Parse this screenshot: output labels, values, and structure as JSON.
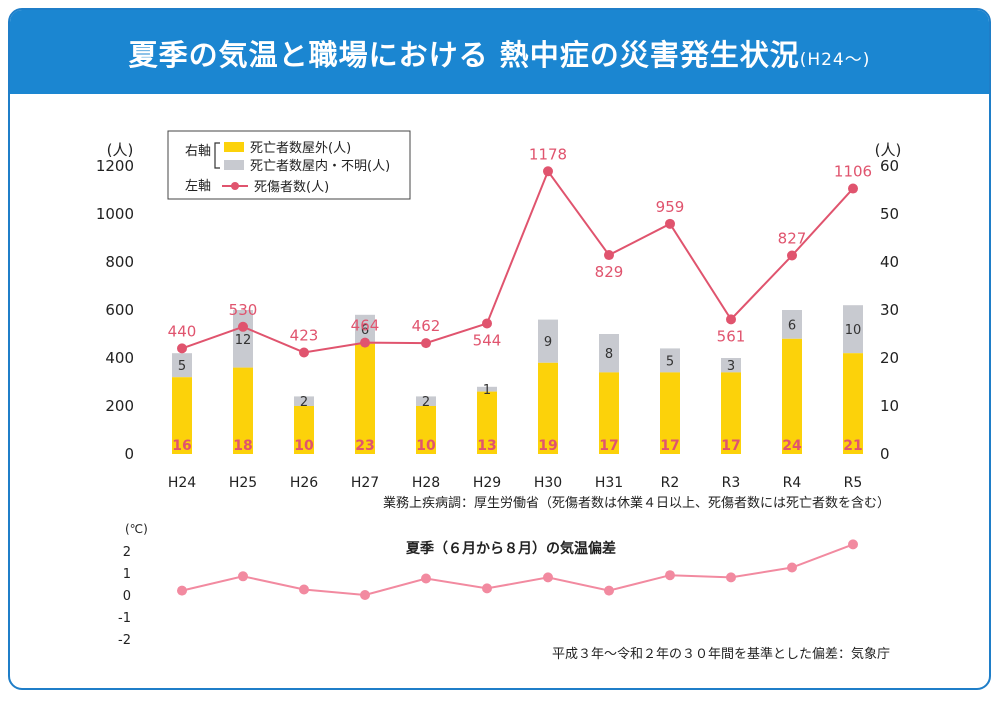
{
  "header": {
    "title": "夏季の気温と職場における 熱中症の災害発生状況",
    "subtitle": "(H24〜)"
  },
  "colors": {
    "header_bg": "#1b86d1",
    "outdoor": "#fcd20a",
    "indoor": "#c8cad0",
    "line": "#e0546e",
    "temp_line": "#f28aa0"
  },
  "main_chart": {
    "left_unit": "(人)",
    "right_unit": "(人)",
    "left_ticks": [
      "0",
      "200",
      "400",
      "600",
      "800",
      "1000",
      "1200"
    ],
    "right_ticks": [
      "0",
      "10",
      "20",
      "30",
      "40",
      "50",
      "60"
    ],
    "legend": {
      "right_axis": "右軸",
      "left_axis": "左軸",
      "outdoor": "死亡者数屋外(人)",
      "indoor": "死亡者数屋内・不明(人)",
      "casualties": "死傷者数(人)"
    },
    "source": "業務上疾病調：厚生労働省（死傷者数は休業４日以上、死傷者数には死亡者数を含む）"
  },
  "chart_data": [
    {
      "type": "bar+line",
      "categories": [
        "H24",
        "H25",
        "H26",
        "H27",
        "H28",
        "H29",
        "H30",
        "H31",
        "R2",
        "R3",
        "R4",
        "R5"
      ],
      "series": [
        {
          "name": "死亡者数屋外(人)",
          "axis": "right",
          "values": [
            16,
            18,
            10,
            23,
            10,
            13,
            19,
            17,
            17,
            17,
            24,
            21
          ]
        },
        {
          "name": "死亡者数屋内・不明(人)",
          "axis": "right",
          "values": [
            5,
            12,
            2,
            6,
            2,
            1,
            9,
            8,
            5,
            3,
            6,
            10
          ]
        },
        {
          "name": "死傷者数(人)",
          "axis": "left",
          "values": [
            440,
            530,
            423,
            464,
            462,
            544,
            1178,
            829,
            959,
            561,
            827,
            1106
          ]
        }
      ],
      "left_ylim": [
        0,
        1200
      ],
      "right_ylim": [
        0,
        60
      ]
    },
    {
      "type": "line",
      "title": "夏季（６月から８月）の気温偏差",
      "categories": [
        "H24",
        "H25",
        "H26",
        "H27",
        "H28",
        "H29",
        "H30",
        "H31",
        "R2",
        "R3",
        "R4",
        "R5"
      ],
      "values": [
        0.2,
        0.85,
        0.25,
        0.0,
        0.75,
        0.3,
        0.8,
        0.2,
        0.9,
        0.8,
        1.25,
        2.3
      ],
      "ylim": [
        -2,
        2
      ],
      "ylabel": "(℃)",
      "ticks": [
        "2",
        "1",
        "0",
        "-1",
        "-2"
      ],
      "source": "平成３年〜令和２年の３０年間を基準とした偏差：気象庁"
    }
  ]
}
